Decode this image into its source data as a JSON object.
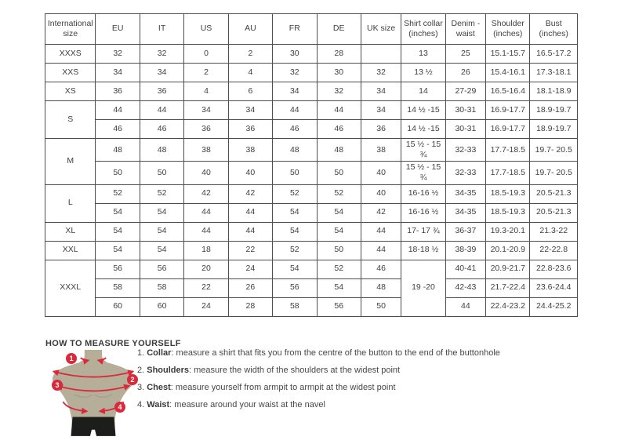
{
  "size_table": {
    "columns": [
      "International size",
      "EU",
      "IT",
      "US",
      "AU",
      "FR",
      "DE",
      "UK size",
      "Shirt collar (inches)",
      "Denim - waist",
      "Shoulder (inches)",
      "Bust (inches)"
    ],
    "rows": [
      [
        {
          "t": "XXXS"
        },
        {
          "t": "32"
        },
        {
          "t": "32"
        },
        {
          "t": "0"
        },
        {
          "t": "2"
        },
        {
          "t": "30"
        },
        {
          "t": "28"
        },
        {
          "t": ""
        },
        {
          "t": "13"
        },
        {
          "t": "25"
        },
        {
          "t": "15.1-15.7"
        },
        {
          "t": "16.5-17.2"
        }
      ],
      [
        {
          "t": "XXS"
        },
        {
          "t": "34"
        },
        {
          "t": "34"
        },
        {
          "t": "2"
        },
        {
          "t": "4"
        },
        {
          "t": "32"
        },
        {
          "t": "30"
        },
        {
          "t": "32"
        },
        {
          "t": "13 ½"
        },
        {
          "t": "26"
        },
        {
          "t": "15.4-16.1"
        },
        {
          "t": "17.3-18.1"
        }
      ],
      [
        {
          "t": "XS"
        },
        {
          "t": "36"
        },
        {
          "t": "36"
        },
        {
          "t": "4"
        },
        {
          "t": "6"
        },
        {
          "t": "34"
        },
        {
          "t": "32"
        },
        {
          "t": "34"
        },
        {
          "t": "14"
        },
        {
          "t": "27-29"
        },
        {
          "t": "16.5-16.4"
        },
        {
          "t": "18.1-18.9"
        }
      ],
      [
        {
          "t": "S",
          "rs": 2
        },
        {
          "t": "44"
        },
        {
          "t": "44"
        },
        {
          "t": "34"
        },
        {
          "t": "34"
        },
        {
          "t": "44"
        },
        {
          "t": "44"
        },
        {
          "t": "34"
        },
        {
          "t": "14 ½ -15"
        },
        {
          "t": "30-31"
        },
        {
          "t": "16.9-17.7"
        },
        {
          "t": "18.9-19.7"
        }
      ],
      [
        {
          "t": "46"
        },
        {
          "t": "46"
        },
        {
          "t": "36"
        },
        {
          "t": "36"
        },
        {
          "t": "46"
        },
        {
          "t": "46"
        },
        {
          "t": "36"
        },
        {
          "t": "14 ½ -15"
        },
        {
          "t": "30-31"
        },
        {
          "t": "16.9-17.7"
        },
        {
          "t": "18.9-19.7"
        }
      ],
      [
        {
          "t": "M",
          "rs": 2
        },
        {
          "t": "48"
        },
        {
          "t": "48"
        },
        {
          "t": "38"
        },
        {
          "t": "38"
        },
        {
          "t": "48"
        },
        {
          "t": "48"
        },
        {
          "t": "38"
        },
        {
          "t": "15 ½ - 15 ¾"
        },
        {
          "t": "32-33"
        },
        {
          "t": "17.7-18.5"
        },
        {
          "t": "19.7- 20.5"
        }
      ],
      [
        {
          "t": "50"
        },
        {
          "t": "50"
        },
        {
          "t": "40"
        },
        {
          "t": "40"
        },
        {
          "t": "50"
        },
        {
          "t": "50"
        },
        {
          "t": "40"
        },
        {
          "t": "15 ½ - 15 ¾"
        },
        {
          "t": "32-33"
        },
        {
          "t": "17.7-18.5"
        },
        {
          "t": "19.7- 20.5"
        }
      ],
      [
        {
          "t": "L",
          "rs": 2
        },
        {
          "t": "52"
        },
        {
          "t": "52"
        },
        {
          "t": "42"
        },
        {
          "t": "42"
        },
        {
          "t": "52"
        },
        {
          "t": "52"
        },
        {
          "t": "40"
        },
        {
          "t": "16-16 ½"
        },
        {
          "t": "34-35"
        },
        {
          "t": "18.5-19.3"
        },
        {
          "t": "20.5-21.3"
        }
      ],
      [
        {
          "t": "54"
        },
        {
          "t": "54"
        },
        {
          "t": "44"
        },
        {
          "t": "44"
        },
        {
          "t": "54"
        },
        {
          "t": "54"
        },
        {
          "t": "42"
        },
        {
          "t": "16-16 ½"
        },
        {
          "t": "34-35"
        },
        {
          "t": "18.5-19.3"
        },
        {
          "t": "20.5-21.3"
        }
      ],
      [
        {
          "t": "XL"
        },
        {
          "t": "54"
        },
        {
          "t": "54"
        },
        {
          "t": "44"
        },
        {
          "t": "44"
        },
        {
          "t": "54"
        },
        {
          "t": "54"
        },
        {
          "t": "44"
        },
        {
          "t": "17- 17 ¾"
        },
        {
          "t": "36-37"
        },
        {
          "t": "19.3-20.1"
        },
        {
          "t": "21.3-22"
        }
      ],
      [
        {
          "t": "XXL"
        },
        {
          "t": "54"
        },
        {
          "t": "54"
        },
        {
          "t": "18"
        },
        {
          "t": "22"
        },
        {
          "t": "52"
        },
        {
          "t": "50"
        },
        {
          "t": "44"
        },
        {
          "t": "18-18 ½"
        },
        {
          "t": "38-39"
        },
        {
          "t": "20.1-20.9"
        },
        {
          "t": "22-22.8"
        }
      ],
      [
        {
          "t": "XXXL",
          "rs": 3
        },
        {
          "t": "56"
        },
        {
          "t": "56"
        },
        {
          "t": "20"
        },
        {
          "t": "24"
        },
        {
          "t": "54"
        },
        {
          "t": "52"
        },
        {
          "t": "46"
        },
        {
          "t": "19 -20",
          "rs": 3
        },
        {
          "t": "40-41"
        },
        {
          "t": "20.9-21.7"
        },
        {
          "t": "22.8-23.6"
        }
      ],
      [
        {
          "t": "58"
        },
        {
          "t": "58"
        },
        {
          "t": "22"
        },
        {
          "t": "26"
        },
        {
          "t": "56"
        },
        {
          "t": "54"
        },
        {
          "t": "48"
        },
        {
          "t": "42-43"
        },
        {
          "t": "21.7-22.4"
        },
        {
          "t": "23.6-24.4"
        }
      ],
      [
        {
          "t": "60"
        },
        {
          "t": "60"
        },
        {
          "t": "24"
        },
        {
          "t": "28"
        },
        {
          "t": "58"
        },
        {
          "t": "56"
        },
        {
          "t": "50"
        },
        {
          "t": "44"
        },
        {
          "t": "22.4-23.2"
        },
        {
          "t": "24.4-25.2"
        }
      ]
    ]
  },
  "measure": {
    "title": "HOW TO MEASURE YOURSELF",
    "items": [
      {
        "num": "1. ",
        "label": "Collar",
        "rest": ": measure a shirt that fits you from the centre of the button to the end of the buttonhole"
      },
      {
        "num": "2. ",
        "label": "Shoulders",
        "rest": ": measure the width of the shoulders at the widest point"
      },
      {
        "num": "3. ",
        "label": "Chest",
        "rest": ": measure yourself from armpit to armpit at the widest point"
      },
      {
        "num": "4. ",
        "label": "Waist",
        "rest": ": measure around your waist at the navel"
      }
    ],
    "badges": [
      "1",
      "2",
      "3",
      "4"
    ]
  },
  "colors": {
    "accent_red": "#d9293a",
    "mannequin_body": "#b5af99",
    "mannequin_shorts": "#1d1d1b",
    "table_border": "#4d4d4d",
    "text": "#3f3f3f"
  }
}
